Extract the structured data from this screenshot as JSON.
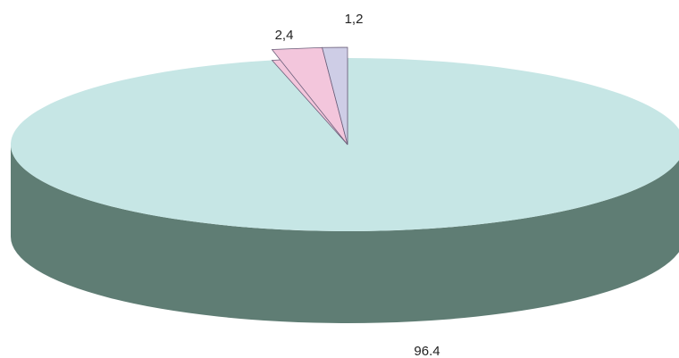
{
  "chart_data": {
    "type": "pie",
    "style": "3d",
    "title": "",
    "legend": "none",
    "slices": [
      {
        "label": "96.4",
        "value": 96.4,
        "top_color": "#c6e6e5",
        "side_color": "#5f7d74"
      },
      {
        "label": "2,4",
        "value": 2.4,
        "top_color": "#f3c6dc",
        "side_color": "#c98faa"
      },
      {
        "label": "1,2",
        "value": 1.2,
        "top_color": "#cecde6",
        "side_color": "#9a98c0"
      }
    ]
  }
}
